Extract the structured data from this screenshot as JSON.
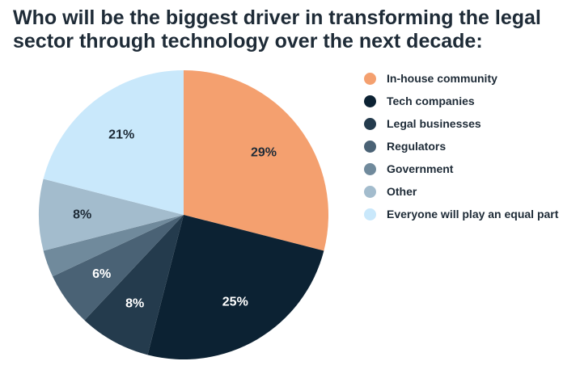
{
  "chart_data": {
    "type": "pie",
    "title_lines": [
      "Who will be the biggest driver in transforming the legal",
      "sector through technology over the next decade:"
    ],
    "slices": [
      {
        "name": "In-house community",
        "value": 29,
        "label": "29%",
        "color": "#f4a06f",
        "label_color": "#1e2b37"
      },
      {
        "name": "Tech companies",
        "value": 25,
        "label": "25%",
        "color": "#0c2233",
        "label_color": "#ffffff"
      },
      {
        "name": "Legal businesses",
        "value": 8,
        "label": "8%",
        "color": "#243b4d",
        "label_color": "#ffffff"
      },
      {
        "name": "Regulators",
        "value": 6,
        "label": "6%",
        "color": "#4a6275",
        "label_color": "#ffffff"
      },
      {
        "name": "Government",
        "value": 3,
        "label": "",
        "color": "#708a9c",
        "label_color": "#ffffff"
      },
      {
        "name": "Other",
        "value": 8,
        "label": "8%",
        "color": "#a3bccd",
        "label_color": "#1e2b37"
      },
      {
        "name": "Everyone will play an equal part",
        "value": 21,
        "label": "21%",
        "color": "#c9e8fb",
        "label_color": "#1e2b37"
      }
    ],
    "legend_position": "right"
  }
}
